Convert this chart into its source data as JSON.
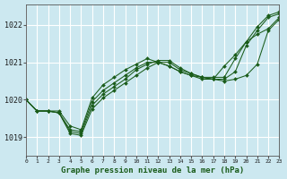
{
  "title": "Graphe pression niveau de la mer (hPa)",
  "bg_color": "#cce8f0",
  "grid_color": "#ffffff",
  "line_color": "#1a5c1a",
  "xmin": 0,
  "xmax": 23,
  "ymin": 1018.5,
  "ymax": 1022.55,
  "yticks": [
    1019,
    1020,
    1021,
    1022
  ],
  "xticks": [
    0,
    1,
    2,
    3,
    4,
    5,
    6,
    7,
    8,
    9,
    10,
    11,
    12,
    13,
    14,
    15,
    16,
    17,
    18,
    19,
    20,
    21,
    22,
    23
  ],
  "series": [
    [
      1020.0,
      1019.7,
      1019.7,
      1019.65,
      1019.1,
      1019.05,
      1019.75,
      1020.05,
      1020.25,
      1020.45,
      1020.65,
      1020.85,
      1021.0,
      1021.0,
      1020.8,
      1020.7,
      1020.6,
      1020.55,
      1020.55,
      1020.75,
      1021.45,
      1021.85,
      1022.2,
      1022.3
    ],
    [
      1020.0,
      1019.7,
      1019.7,
      1019.65,
      1019.15,
      1019.1,
      1019.85,
      1020.15,
      1020.35,
      1020.55,
      1020.8,
      1020.95,
      1021.05,
      1021.05,
      1020.85,
      1020.7,
      1020.6,
      1020.6,
      1020.6,
      1021.1,
      1021.55,
      1021.95,
      1022.25,
      1022.35
    ],
    [
      1020.0,
      1019.7,
      1019.7,
      1019.65,
      1019.2,
      1019.15,
      1019.95,
      1020.25,
      1020.45,
      1020.65,
      1020.85,
      1021.0,
      1021.0,
      1020.9,
      1020.75,
      1020.65,
      1020.6,
      1020.55,
      1020.9,
      1021.2,
      1021.55,
      1021.75,
      1021.9,
      1022.2
    ],
    [
      1020.0,
      1019.7,
      1019.7,
      1019.7,
      1019.3,
      1019.2,
      1020.05,
      1020.4,
      1020.6,
      1020.8,
      1020.95,
      1021.1,
      1021.0,
      1020.9,
      1020.75,
      1020.65,
      1020.55,
      1020.55,
      1020.5,
      1020.55,
      1020.65,
      1020.95,
      1021.85,
      1022.15
    ]
  ]
}
